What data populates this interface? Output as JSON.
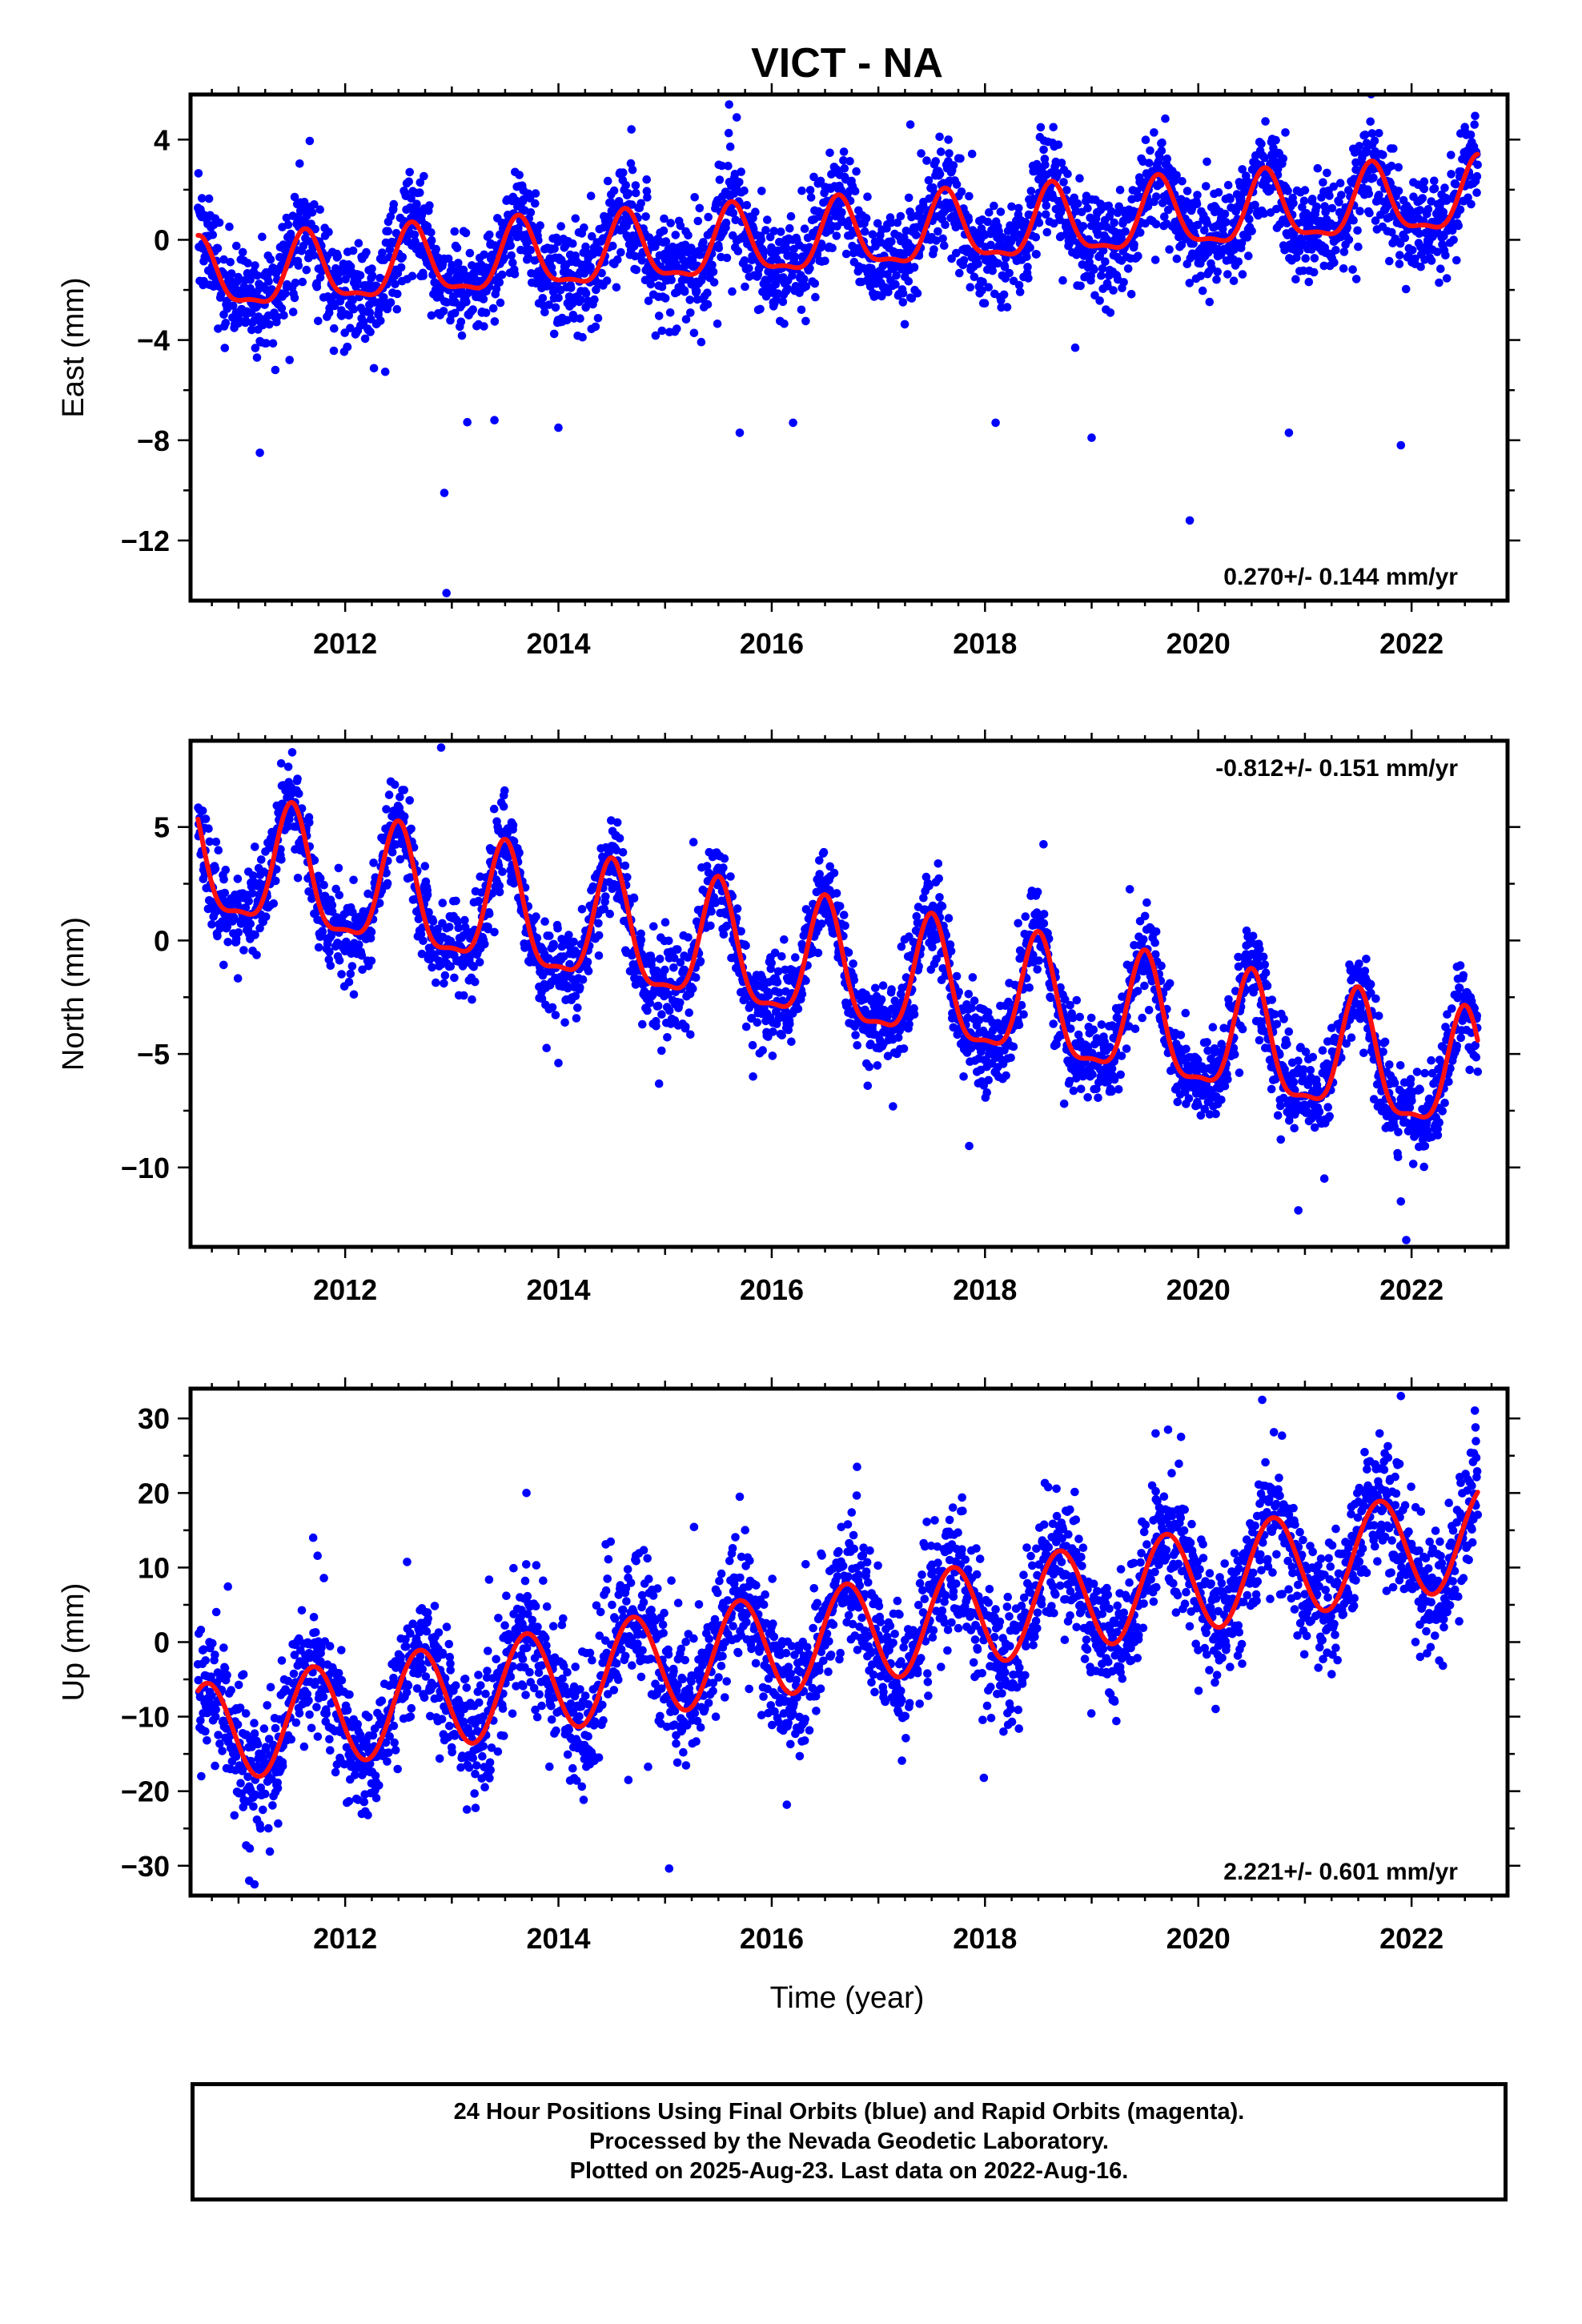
{
  "title": "VICT - NA",
  "xlabel": "Time (year)",
  "caption": {
    "line1": "24 Hour Positions Using Final Orbits (blue) and Rapid Orbits (magenta).",
    "line2": "Processed by the Nevada Geodetic Laboratory.",
    "line3": "Plotted on 2025-Aug-23. Last data on 2022-Aug-16."
  },
  "colors": {
    "points": "#0000ff",
    "fit": "#ff1010",
    "frame": "#000000"
  },
  "chart_data": [
    {
      "type": "scatter",
      "name": "east",
      "ylabel": "East (mm)",
      "rate_label": "0.270+/- 0.144 mm/yr",
      "rate_position": "bottom-right",
      "xlim": [
        2010.55,
        2022.9
      ],
      "ylim": [
        -14.4,
        5.8
      ],
      "x_ticks": [
        2012,
        2014,
        2016,
        2018,
        2020,
        2022
      ],
      "y_ticks": [
        4,
        0,
        -4,
        -8,
        -12
      ],
      "y_tick_labels": [
        "4",
        "0",
        "−4",
        "−8",
        "−12"
      ],
      "start": 2010.62,
      "end": 2022.62,
      "model": {
        "intercept": -1.62,
        "rate": 0.27,
        "annual_amplitude": 1.35,
        "annual_phase_peak": 0.63,
        "semiannual_amplitude": 0.45,
        "semiannual_phase_peak": 0.12
      },
      "scatter_sd": 1.0,
      "outliers": [
        [
          2012.93,
          -10.1
        ],
        [
          2012.95,
          -14.1
        ],
        [
          2019.92,
          -11.2
        ],
        [
          2011.2,
          -8.5
        ],
        [
          2014.0,
          -7.5
        ],
        [
          2013.4,
          -7.2
        ],
        [
          2016.2,
          -7.3
        ],
        [
          2018.1,
          -7.3
        ],
        [
          2021.9,
          -8.2
        ],
        [
          2019.0,
          -7.9
        ],
        [
          2015.7,
          -7.7
        ],
        [
          2020.85,
          -7.7
        ],
        [
          2015.6,
          5.4
        ],
        [
          2017.3,
          4.6
        ],
        [
          2022.5,
          4.5
        ]
      ],
      "fit_points": [
        [
          2010.62,
          -0.3
        ],
        [
          2010.9,
          -3.0
        ],
        [
          2011.2,
          -2.0
        ],
        [
          2011.4,
          -1.6
        ],
        [
          2011.58,
          0.1
        ],
        [
          2011.9,
          -2.8
        ],
        [
          2012.15,
          -1.3
        ],
        [
          2012.35,
          -1.8
        ],
        [
          2012.65,
          0.4
        ],
        [
          2012.95,
          -2.6
        ],
        [
          2013.15,
          -1.0
        ],
        [
          2013.4,
          -1.7
        ],
        [
          2013.65,
          0.6
        ],
        [
          2013.95,
          -2.3
        ],
        [
          2014.2,
          -0.8
        ],
        [
          2014.4,
          -1.3
        ],
        [
          2014.65,
          0.8
        ],
        [
          2014.95,
          -1.9
        ],
        [
          2015.15,
          -0.6
        ],
        [
          2015.4,
          -0.9
        ],
        [
          2015.65,
          1.2
        ],
        [
          2015.95,
          -1.7
        ],
        [
          2016.15,
          -0.3
        ],
        [
          2016.4,
          -0.6
        ],
        [
          2016.65,
          1.4
        ],
        [
          2016.95,
          -1.4
        ],
        [
          2017.2,
          0.1
        ],
        [
          2017.4,
          -0.4
        ],
        [
          2017.65,
          1.7
        ],
        [
          2017.95,
          -1.1
        ],
        [
          2018.2,
          0.4
        ],
        [
          2018.4,
          0.0
        ],
        [
          2018.65,
          1.9
        ],
        [
          2018.95,
          -0.9
        ],
        [
          2019.2,
          0.8
        ],
        [
          2019.4,
          0.3
        ],
        [
          2019.65,
          2.3
        ],
        [
          2019.95,
          -0.6
        ],
        [
          2020.2,
          1.1
        ],
        [
          2020.4,
          0.5
        ],
        [
          2020.65,
          2.4
        ],
        [
          2020.95,
          -0.4
        ],
        [
          2021.2,
          1.3
        ],
        [
          2021.4,
          0.8
        ],
        [
          2021.65,
          2.8
        ],
        [
          2021.95,
          -0.1
        ],
        [
          2022.2,
          1.6
        ],
        [
          2022.35,
          0.9
        ],
        [
          2022.62,
          3.0
        ]
      ]
    },
    {
      "type": "scatter",
      "name": "north",
      "ylabel": "North (mm)",
      "rate_label": "-0.812+/- 0.151 mm/yr",
      "rate_position": "top-right",
      "xlim": [
        2010.55,
        2022.9
      ],
      "ylim": [
        -13.5,
        8.8
      ],
      "x_ticks": [
        2012,
        2014,
        2016,
        2018,
        2020,
        2022
      ],
      "y_ticks": [
        5,
        0,
        -5,
        -10
      ],
      "y_tick_labels": [
        "5",
        "0",
        "−5",
        "−10"
      ],
      "start": 2010.62,
      "end": 2022.62,
      "model": {
        "intercept": 3.4,
        "rate": -0.812,
        "annual_amplitude": 2.6,
        "annual_phase_peak": 0.5,
        "semiannual_amplitude": 0.8,
        "semiannual_phase_peak": 0.0
      },
      "scatter_sd": 0.95,
      "outliers": [
        [
          2012.9,
          8.5
        ],
        [
          2021.95,
          -13.2
        ],
        [
          2014.0,
          -5.4
        ],
        [
          2016.9,
          -6.4
        ],
        [
          2021.9,
          -11.5
        ],
        [
          2011.4,
          7.8
        ]
      ],
      "fit_points": [
        [
          2010.62,
          6.2
        ],
        [
          2010.9,
          1.9
        ],
        [
          2011.2,
          3.3
        ],
        [
          2011.5,
          6.9
        ],
        [
          2011.9,
          1.0
        ],
        [
          2012.2,
          2.9
        ],
        [
          2012.5,
          6.1
        ],
        [
          2012.9,
          0.3
        ],
        [
          2013.2,
          2.0
        ],
        [
          2013.5,
          5.3
        ],
        [
          2013.9,
          -0.6
        ],
        [
          2014.2,
          1.1
        ],
        [
          2014.5,
          4.5
        ],
        [
          2014.9,
          -1.4
        ],
        [
          2015.2,
          0.2
        ],
        [
          2015.5,
          3.6
        ],
        [
          2015.9,
          -2.2
        ],
        [
          2016.2,
          -0.6
        ],
        [
          2016.5,
          2.9
        ],
        [
          2016.9,
          -3.0
        ],
        [
          2017.2,
          -1.4
        ],
        [
          2017.5,
          2.1
        ],
        [
          2017.9,
          -3.8
        ],
        [
          2018.2,
          -2.3
        ],
        [
          2018.5,
          1.2
        ],
        [
          2018.9,
          -4.6
        ],
        [
          2019.2,
          -3.1
        ],
        [
          2019.5,
          0.5
        ],
        [
          2019.9,
          -5.4
        ],
        [
          2020.2,
          -4.0
        ],
        [
          2020.5,
          -0.4
        ],
        [
          2020.9,
          -6.2
        ],
        [
          2021.2,
          -4.8
        ],
        [
          2021.5,
          -1.2
        ],
        [
          2021.9,
          -7.0
        ],
        [
          2022.2,
          -5.6
        ],
        [
          2022.5,
          -2.0
        ],
        [
          2022.62,
          -3.1
        ]
      ]
    },
    {
      "type": "scatter",
      "name": "up",
      "ylabel": "Up (mm)",
      "rate_label": "2.221+/- 0.601 mm/yr",
      "rate_position": "bottom-right",
      "xlim": [
        2010.55,
        2022.9
      ],
      "ylim": [
        -34,
        34
      ],
      "x_ticks": [
        2012,
        2014,
        2016,
        2018,
        2020,
        2022
      ],
      "y_ticks": [
        30,
        20,
        10,
        0,
        -10,
        -20,
        -30
      ],
      "y_tick_labels": [
        "30",
        "20",
        "10",
        "0",
        "−10",
        "−20",
        "−30"
      ],
      "start": 2010.62,
      "end": 2022.62,
      "model": {
        "intercept": -12.5,
        "rate": 2.221,
        "annual_amplitude": 6.8,
        "annual_phase_peak": 0.7,
        "semiannual_amplitude": 0.0,
        "semiannual_phase_peak": 0.0
      },
      "scatter_sd": 4.3,
      "outliers": [
        [
          2011.1,
          -32.0
        ],
        [
          2011.15,
          -32.5
        ],
        [
          2021.9,
          33.0
        ],
        [
          2020.6,
          32.5
        ],
        [
          2016.8,
          23.5
        ],
        [
          2013.7,
          20.0
        ],
        [
          2015.7,
          19.5
        ],
        [
          2019.6,
          28.0
        ],
        [
          2021.7,
          28.0
        ],
        [
          2022.6,
          28.8
        ],
        [
          2011.7,
          14.0
        ]
      ],
      "fit_points": [
        [
          2010.62,
          -7.8
        ],
        [
          2010.9,
          -11.0
        ],
        [
          2011.2,
          -19.5
        ],
        [
          2011.6,
          -6.0
        ],
        [
          2011.9,
          -9.0
        ],
        [
          2012.2,
          -17.5
        ],
        [
          2012.65,
          -3.5
        ],
        [
          2012.9,
          -7.0
        ],
        [
          2013.25,
          -15.0
        ],
        [
          2013.65,
          -1.5
        ],
        [
          2013.9,
          -4.5
        ],
        [
          2014.2,
          -13.0
        ],
        [
          2014.65,
          1.0
        ],
        [
          2014.9,
          -2.0
        ],
        [
          2015.25,
          -11.0
        ],
        [
          2015.65,
          3.5
        ],
        [
          2015.9,
          0.0
        ],
        [
          2016.2,
          -8.5
        ],
        [
          2016.65,
          5.5
        ],
        [
          2016.9,
          2.0
        ],
        [
          2017.2,
          -6.0
        ],
        [
          2017.65,
          8.0
        ],
        [
          2017.9,
          4.0
        ],
        [
          2018.2,
          -4.0
        ],
        [
          2018.65,
          10.0
        ],
        [
          2018.9,
          6.0
        ],
        [
          2019.2,
          -2.0
        ],
        [
          2019.65,
          12.0
        ],
        [
          2019.9,
          8.0
        ],
        [
          2020.25,
          0.0
        ],
        [
          2020.65,
          14.5
        ],
        [
          2020.9,
          11.0
        ],
        [
          2021.25,
          3.0
        ],
        [
          2021.65,
          16.5
        ],
        [
          2021.9,
          13.0
        ],
        [
          2022.25,
          5.0
        ],
        [
          2022.62,
          18.5
        ]
      ]
    }
  ]
}
